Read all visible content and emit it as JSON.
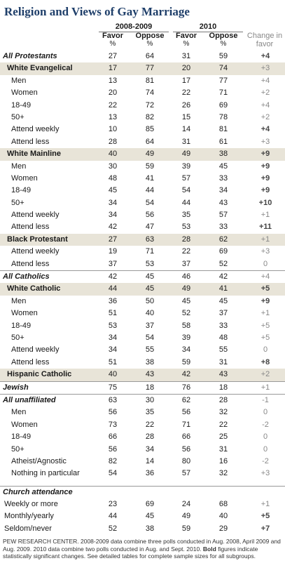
{
  "title": "Religion and Views of Gay Marriage",
  "periods": [
    "2008-2009",
    "2010"
  ],
  "col_labels": {
    "favor": "Favor",
    "oppose": "Oppose",
    "pct": "%",
    "change": "Change in favor"
  },
  "rows": [
    {
      "label": "All Protestants",
      "level": 0,
      "f1": "27",
      "o1": "64",
      "f2": "31",
      "o2": "59",
      "chg": "+4",
      "bold": true
    },
    {
      "label": "White Evangelical",
      "level": 1,
      "f1": "17",
      "o1": "77",
      "f2": "20",
      "o2": "74",
      "chg": "+3",
      "bold": false
    },
    {
      "label": "Men",
      "level": 2,
      "f1": "13",
      "o1": "81",
      "f2": "17",
      "o2": "77",
      "chg": "+4",
      "bold": false
    },
    {
      "label": "Women",
      "level": 2,
      "f1": "20",
      "o1": "74",
      "f2": "22",
      "o2": "71",
      "chg": "+2",
      "bold": false
    },
    {
      "label": "18-49",
      "level": 2,
      "f1": "22",
      "o1": "72",
      "f2": "26",
      "o2": "69",
      "chg": "+4",
      "bold": false
    },
    {
      "label": "50+",
      "level": 2,
      "f1": "13",
      "o1": "82",
      "f2": "15",
      "o2": "78",
      "chg": "+2",
      "bold": false
    },
    {
      "label": "Attend weekly",
      "level": 2,
      "f1": "10",
      "o1": "85",
      "f2": "14",
      "o2": "81",
      "chg": "+4",
      "bold": true
    },
    {
      "label": "Attend less",
      "level": 2,
      "f1": "28",
      "o1": "64",
      "f2": "31",
      "o2": "61",
      "chg": "+3",
      "bold": false
    },
    {
      "label": "White Mainline",
      "level": 1,
      "f1": "40",
      "o1": "49",
      "f2": "49",
      "o2": "38",
      "chg": "+9",
      "bold": true
    },
    {
      "label": "Men",
      "level": 2,
      "f1": "30",
      "o1": "59",
      "f2": "39",
      "o2": "45",
      "chg": "+9",
      "bold": true
    },
    {
      "label": "Women",
      "level": 2,
      "f1": "48",
      "o1": "41",
      "f2": "57",
      "o2": "33",
      "chg": "+9",
      "bold": true
    },
    {
      "label": "18-49",
      "level": 2,
      "f1": "45",
      "o1": "44",
      "f2": "54",
      "o2": "34",
      "chg": "+9",
      "bold": true
    },
    {
      "label": "50+",
      "level": 2,
      "f1": "34",
      "o1": "54",
      "f2": "44",
      "o2": "43",
      "chg": "+10",
      "bold": true
    },
    {
      "label": "Attend weekly",
      "level": 2,
      "f1": "34",
      "o1": "56",
      "f2": "35",
      "o2": "57",
      "chg": "+1",
      "bold": false
    },
    {
      "label": "Attend less",
      "level": 2,
      "f1": "42",
      "o1": "47",
      "f2": "53",
      "o2": "33",
      "chg": "+11",
      "bold": true
    },
    {
      "label": "Black Protestant",
      "level": 1,
      "f1": "27",
      "o1": "63",
      "f2": "28",
      "o2": "62",
      "chg": "+1",
      "bold": false
    },
    {
      "label": "Attend weekly",
      "level": 2,
      "f1": "19",
      "o1": "71",
      "f2": "22",
      "o2": "69",
      "chg": "+3",
      "bold": false
    },
    {
      "label": "Attend less",
      "level": 2,
      "f1": "37",
      "o1": "53",
      "f2": "37",
      "o2": "52",
      "chg": "0",
      "bold": false
    },
    {
      "label": "All Catholics",
      "level": 0,
      "f1": "42",
      "o1": "45",
      "f2": "46",
      "o2": "42",
      "chg": "+4",
      "bold": false,
      "sep": true
    },
    {
      "label": "White Catholic",
      "level": 1,
      "f1": "44",
      "o1": "45",
      "f2": "49",
      "o2": "41",
      "chg": "+5",
      "bold": true
    },
    {
      "label": "Men",
      "level": 2,
      "f1": "36",
      "o1": "50",
      "f2": "45",
      "o2": "45",
      "chg": "+9",
      "bold": true
    },
    {
      "label": "Women",
      "level": 2,
      "f1": "51",
      "o1": "40",
      "f2": "52",
      "o2": "37",
      "chg": "+1",
      "bold": false
    },
    {
      "label": "18-49",
      "level": 2,
      "f1": "53",
      "o1": "37",
      "f2": "58",
      "o2": "33",
      "chg": "+5",
      "bold": false
    },
    {
      "label": "50+",
      "level": 2,
      "f1": "34",
      "o1": "54",
      "f2": "39",
      "o2": "48",
      "chg": "+5",
      "bold": false
    },
    {
      "label": "Attend weekly",
      "level": 2,
      "f1": "34",
      "o1": "55",
      "f2": "34",
      "o2": "55",
      "chg": "0",
      "bold": false
    },
    {
      "label": "Attend less",
      "level": 2,
      "f1": "51",
      "o1": "38",
      "f2": "59",
      "o2": "31",
      "chg": "+8",
      "bold": true
    },
    {
      "label": "Hispanic Catholic",
      "level": 1,
      "f1": "40",
      "o1": "43",
      "f2": "42",
      "o2": "43",
      "chg": "+2",
      "bold": false
    },
    {
      "label": "Jewish",
      "level": 0,
      "f1": "75",
      "o1": "18",
      "f2": "76",
      "o2": "18",
      "chg": "+1",
      "bold": false,
      "sep": true
    },
    {
      "label": "All unaffiliated",
      "level": 0,
      "f1": "63",
      "o1": "30",
      "f2": "62",
      "o2": "28",
      "chg": "-1",
      "bold": false,
      "sep": true
    },
    {
      "label": "Men",
      "level": 2,
      "f1": "56",
      "o1": "35",
      "f2": "56",
      "o2": "32",
      "chg": "0",
      "bold": false
    },
    {
      "label": "Women",
      "level": 2,
      "f1": "73",
      "o1": "22",
      "f2": "71",
      "o2": "22",
      "chg": "-2",
      "bold": false
    },
    {
      "label": "18-49",
      "level": 2,
      "f1": "66",
      "o1": "28",
      "f2": "66",
      "o2": "25",
      "chg": "0",
      "bold": false
    },
    {
      "label": "50+",
      "level": 2,
      "f1": "56",
      "o1": "34",
      "f2": "56",
      "o2": "31",
      "chg": "0",
      "bold": false
    },
    {
      "label": "Atheist/Agnostic",
      "level": 2,
      "f1": "82",
      "o1": "14",
      "f2": "80",
      "o2": "16",
      "chg": "-2",
      "bold": false
    },
    {
      "label": "Nothing in particular",
      "level": 2,
      "f1": "54",
      "o1": "36",
      "f2": "57",
      "o2": "32",
      "chg": "+3",
      "bold": false
    },
    {
      "label": "Church attendance",
      "level": 0,
      "section": true,
      "sep": true,
      "gapBefore": true
    },
    {
      "label": "Weekly or more",
      "level": 3,
      "f1": "23",
      "o1": "69",
      "f2": "24",
      "o2": "68",
      "chg": "+1",
      "bold": false
    },
    {
      "label": "Monthly/yearly",
      "level": 3,
      "f1": "44",
      "o1": "45",
      "f2": "49",
      "o2": "40",
      "chg": "+5",
      "bold": true
    },
    {
      "label": "Seldom/never",
      "level": 3,
      "f1": "52",
      "o1": "38",
      "f2": "59",
      "o2": "29",
      "chg": "+7",
      "bold": true
    }
  ],
  "footer": {
    "source": "PEW RESEARCH CENTER. 2008-2009 data combine three polls conducted in Aug. 2008, April 2009 and Aug. 2009. 2010 data combine two polls conducted in Aug. and Sept. 2010.",
    "bold_word": "Bold",
    "rest": "figures indicate statistically significant changes. See detailed tables for complete sample sizes for all subgroups."
  }
}
